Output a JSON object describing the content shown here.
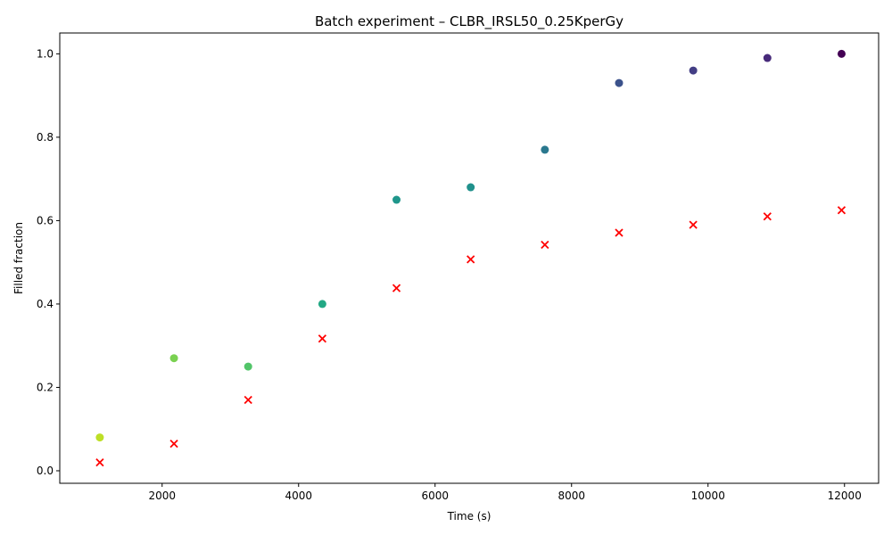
{
  "chart_data": {
    "type": "scatter",
    "title": "Batch experiment – CLBR_IRSL50_0.25KperGy",
    "xlabel": "Time (s)",
    "ylabel": "Filled fraction",
    "xlim": [
      500,
      12500
    ],
    "ylim": [
      -0.03,
      1.05
    ],
    "xticks": [
      2000,
      4000,
      6000,
      8000,
      10000,
      12000
    ],
    "yticks": [
      0.0,
      0.2,
      0.4,
      0.6,
      0.8,
      1.0
    ],
    "xtick_labels": [
      "2000",
      "4000",
      "6000",
      "8000",
      "10000",
      "12000"
    ],
    "ytick_labels": [
      "0.0",
      "0.2",
      "0.4",
      "0.6",
      "0.8",
      "1.0"
    ],
    "grid": false,
    "legend": "none",
    "series": [
      {
        "marker": "circle",
        "colormap": "viridis",
        "x": [
          1087,
          2174,
          3261,
          4348,
          5435,
          6522,
          7609,
          8696,
          9783,
          10870,
          11957
        ],
        "y": [
          0.08,
          0.27,
          0.25,
          0.4,
          0.65,
          0.68,
          0.77,
          0.93,
          0.96,
          0.99,
          1.0
        ],
        "colors": [
          "#bddf26",
          "#7ad151",
          "#52c569",
          "#22a884",
          "#1f968b",
          "#21918c",
          "#2a788e",
          "#3b528b",
          "#433e85",
          "#472a7a",
          "#440154"
        ]
      },
      {
        "marker": "x",
        "color": "#ff0000",
        "x": [
          1087,
          2174,
          3261,
          4348,
          5435,
          6522,
          7609,
          8696,
          9783,
          10870,
          11957
        ],
        "y": [
          0.02,
          0.065,
          0.17,
          0.317,
          0.438,
          0.507,
          0.542,
          0.571,
          0.59,
          0.61,
          0.625
        ]
      }
    ]
  }
}
